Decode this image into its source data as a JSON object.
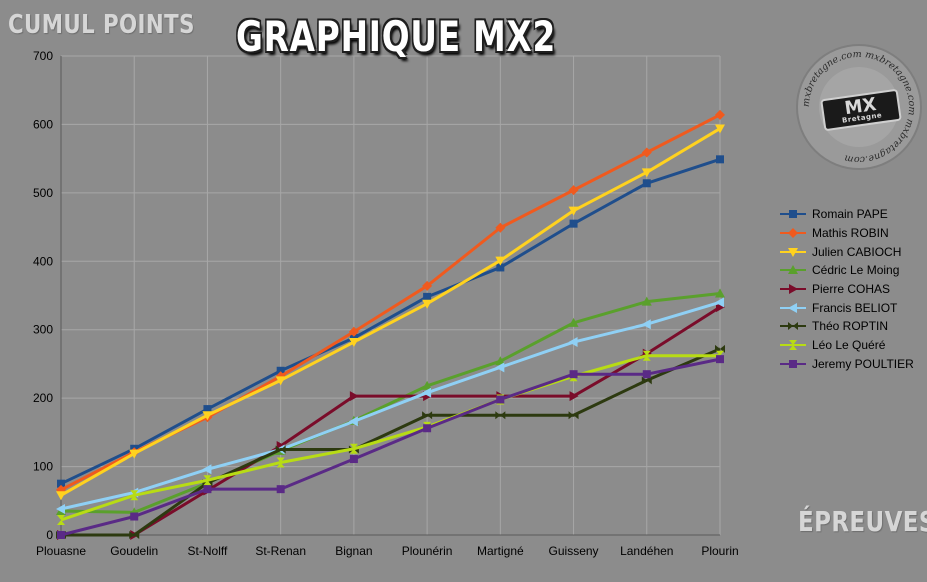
{
  "chart_data": {
    "type": "line",
    "title": "GRAPHIQUE MX2",
    "ylabel": "CUMUL POINTS",
    "xlabel": "ÉPREUVES",
    "categories": [
      "Plouasne",
      "Goudelin",
      "St-Nolff",
      "St-Renan",
      "Bignan",
      "Plounérin",
      "Martigné",
      "Guisseny",
      "Landéhen",
      "Plourin"
    ],
    "ylim": [
      0,
      700
    ],
    "yticks": [
      0,
      100,
      200,
      300,
      400,
      500,
      600,
      700
    ],
    "grid": true,
    "legend_position": "right",
    "series": [
      {
        "name": "Romain PAPE",
        "color": "#1f4e8c",
        "marker": "square",
        "values": [
          75,
          126,
          184,
          240,
          288,
          348,
          391,
          455,
          514,
          549
        ]
      },
      {
        "name": "Mathis ROBIN",
        "color": "#f05a1e",
        "marker": "diamond",
        "values": [
          66,
          121,
          172,
          232,
          297,
          364,
          449,
          504,
          559,
          614
        ]
      },
      {
        "name": "Julien CABIOCH",
        "color": "#ffd21f",
        "marker": "triangle-down",
        "values": [
          58,
          119,
          175,
          226,
          282,
          338,
          401,
          474,
          530,
          594
        ]
      },
      {
        "name": "Cédric Le Moing",
        "color": "#5aa02c",
        "marker": "triangle-up",
        "values": [
          35,
          33,
          76,
          123,
          167,
          218,
          254,
          310,
          341,
          353
        ]
      },
      {
        "name": "Pierre COHAS",
        "color": "#7a0c2a",
        "marker": "triangle-right",
        "values": [
          0,
          0,
          65,
          130,
          203,
          203,
          203,
          203,
          265,
          333
        ]
      },
      {
        "name": "Francis BELIOT",
        "color": "#8fd0f5",
        "marker": "triangle-left",
        "values": [
          38,
          62,
          96,
          125,
          166,
          208,
          245,
          282,
          308,
          340
        ]
      },
      {
        "name": "Théo ROPTIN",
        "color": "#2d3a10",
        "marker": "bowtie",
        "values": [
          0,
          0,
          76,
          125,
          125,
          175,
          175,
          175,
          226,
          272
        ]
      },
      {
        "name": "Léo Le Quéré",
        "color": "#b8dc14",
        "marker": "hourglass",
        "values": [
          22,
          58,
          80,
          106,
          126,
          158,
          198,
          232,
          262,
          262
        ]
      },
      {
        "name": "Jeremy POULTIER",
        "color": "#5a2a86",
        "marker": "square",
        "values": [
          0,
          27,
          67,
          67,
          111,
          156,
          198,
          235,
          235,
          257
        ]
      }
    ]
  },
  "branding": {
    "logo_text": "MX",
    "logo_subtext": "Bretagne",
    "logo_site": "mxbretagne.com"
  }
}
